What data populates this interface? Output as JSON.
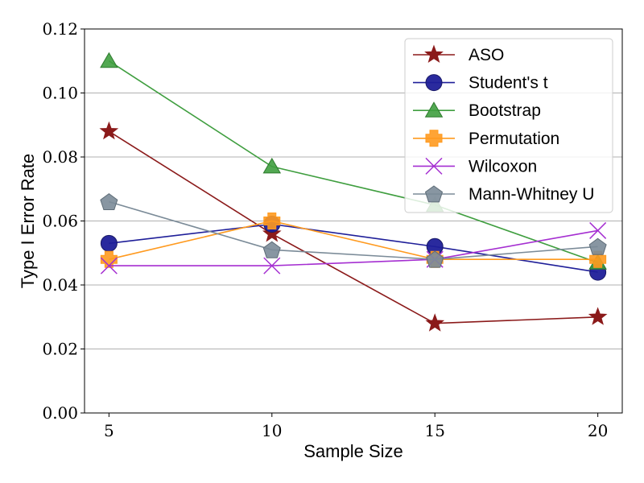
{
  "chart_data": {
    "type": "line",
    "title": "",
    "xlabel": "Sample Size",
    "ylabel": "Type I Error Rate",
    "x": [
      5,
      10,
      15,
      20
    ],
    "xticks": [
      "5",
      "10",
      "15",
      "20"
    ],
    "xlim": [
      4.25,
      20.75
    ],
    "ylim": [
      0.0,
      0.12
    ],
    "yticks": [
      "0.00",
      "0.02",
      "0.04",
      "0.06",
      "0.08",
      "0.10",
      "0.12"
    ],
    "grid": "horizontal",
    "legend_position": "top-right",
    "series": [
      {
        "name": "ASO",
        "color": "#8b1a1a",
        "marker": "star",
        "values": [
          0.088,
          0.056,
          0.028,
          0.03
        ]
      },
      {
        "name": "Student's t",
        "color": "#1f1f99",
        "marker": "circle",
        "values": [
          0.053,
          0.059,
          0.052,
          0.044
        ]
      },
      {
        "name": "Bootstrap",
        "color": "#3f9e3f",
        "marker": "triangle",
        "values": [
          0.11,
          0.077,
          0.065,
          0.047
        ]
      },
      {
        "name": "Permutation",
        "color": "#ff9a1f",
        "marker": "plus",
        "values": [
          0.048,
          0.06,
          0.048,
          0.048
        ]
      },
      {
        "name": "Wilcoxon",
        "color": "#a52fd1",
        "marker": "x",
        "values": [
          0.046,
          0.046,
          0.048,
          0.057
        ]
      },
      {
        "name": "Mann-Whitney U",
        "color": "#7b8b98",
        "marker": "pentagon",
        "values": [
          0.066,
          0.051,
          0.048,
          0.052
        ]
      }
    ]
  }
}
